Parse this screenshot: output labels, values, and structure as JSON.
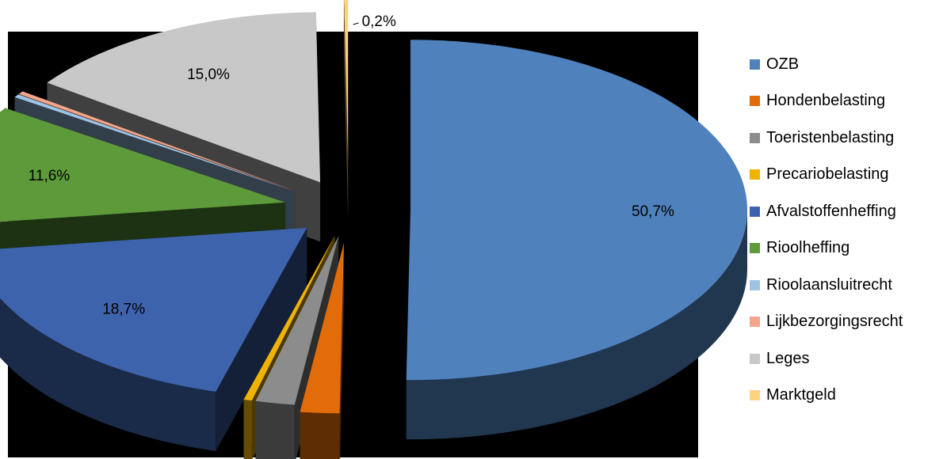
{
  "chart_data": {
    "type": "pie",
    "variant": "exploded-3d",
    "title": "",
    "legend_position": "right",
    "slices": [
      {
        "name": "OZB",
        "value": 50.7,
        "label": "50,7%",
        "color": "#4f81bd"
      },
      {
        "name": "Hondenbelasting",
        "value": 1.9,
        "label": "",
        "color": "#e36c0a"
      },
      {
        "name": "Toeristenbelasting",
        "value": 1.9,
        "label": "",
        "color": "#8c8c8c"
      },
      {
        "name": "Precariobelasting",
        "value": 0.4,
        "label": "",
        "color": "#f0b400"
      },
      {
        "name": "Afvalstoffenheffing",
        "value": 18.7,
        "label": "18,7%",
        "color": "#3e63ad"
      },
      {
        "name": "Rioolheffing",
        "value": 11.6,
        "label": "11,6%",
        "color": "#5c9a3a"
      },
      {
        "name": "Rioolaansluitrecht",
        "value": 0.3,
        "label": "",
        "color": "#9dc3e6"
      },
      {
        "name": "Lijkbezorgingsrecht",
        "value": 0.3,
        "label": "",
        "color": "#f4a58a"
      },
      {
        "name": "Leges",
        "value": 15.0,
        "label": "15,0%",
        "color": "#c8c8c8"
      },
      {
        "name": "Marktgeld",
        "value": 0.2,
        "label": "0,2%",
        "color": "#ffd280"
      }
    ]
  }
}
